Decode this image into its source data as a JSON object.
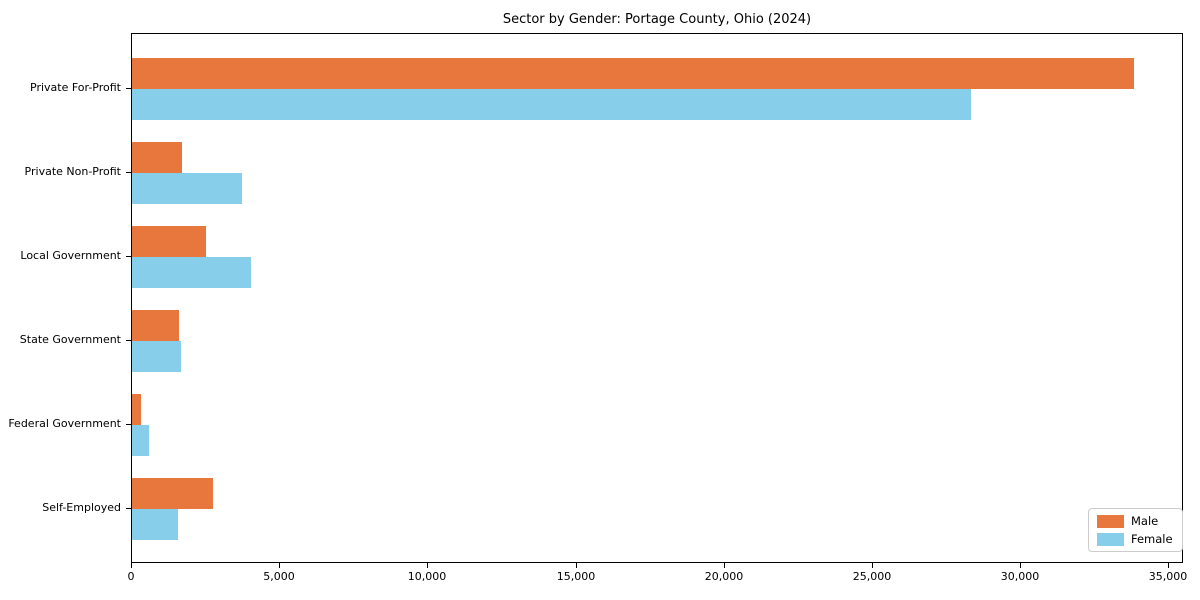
{
  "chart_data": {
    "type": "bar",
    "orientation": "horizontal",
    "title": "Sector by Gender: Portage County, Ohio (2024)",
    "categories": [
      "Private For-Profit",
      "Private Non-Profit",
      "Local Government",
      "State Government",
      "Federal Government",
      "Self-Employed"
    ],
    "series": [
      {
        "name": "Male",
        "color": "#e8773d",
        "values": [
          33800,
          1700,
          2500,
          1600,
          300,
          2750
        ]
      },
      {
        "name": "Female",
        "color": "#87ceeb",
        "values": [
          28300,
          3700,
          4000,
          1650,
          560,
          1550
        ]
      }
    ],
    "xlabel": "",
    "ylabel": "",
    "xlim": [
      0,
      35500
    ],
    "xticks": [
      0,
      5000,
      10000,
      15000,
      20000,
      25000,
      30000,
      35000
    ],
    "xtick_labels": [
      "0",
      "5,000",
      "10,000",
      "15,000",
      "20,000",
      "25,000",
      "30,000",
      "35,000"
    ],
    "grid": false,
    "legend": {
      "position": "lower right",
      "entries": [
        "Male",
        "Female"
      ]
    }
  }
}
